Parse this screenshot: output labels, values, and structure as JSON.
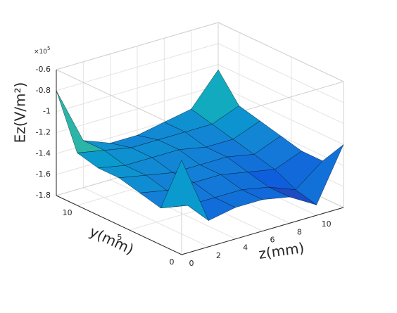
{
  "chart_data": {
    "type": "surface",
    "xlabel": "z(mm)",
    "ylabel": "y(mm)",
    "zlabel": "Ez(V/m²)",
    "zexponent": {
      "base": "×10",
      "power": "5"
    },
    "x": [
      0,
      2,
      4,
      6,
      8,
      10,
      12
    ],
    "y": [
      0,
      2,
      4,
      6,
      8,
      10,
      12
    ],
    "z": [
      [
        -0.9,
        -1.55,
        -1.5,
        -1.5,
        -1.55,
        -1.7,
        -1.2
      ],
      [
        -1.45,
        -1.5,
        -1.5,
        -1.5,
        -1.55,
        -1.65,
        -1.45
      ],
      [
        -1.4,
        -1.45,
        -1.45,
        -1.45,
        -1.5,
        -1.55,
        -1.45
      ],
      [
        -1.35,
        -1.4,
        -1.45,
        -1.45,
        -1.45,
        -1.5,
        -1.4
      ],
      [
        -1.35,
        -1.4,
        -1.4,
        -1.4,
        -1.45,
        -1.45,
        -1.35
      ],
      [
        -1.3,
        -1.35,
        -1.4,
        -1.4,
        -1.4,
        -1.4,
        -1.3
      ],
      [
        -0.8,
        -1.35,
        -1.45,
        -1.45,
        -1.4,
        -1.35,
        -1.05
      ]
    ],
    "xlim": [
      0,
      12
    ],
    "xticks": [
      0,
      2,
      4,
      6,
      8,
      10
    ],
    "ylim": [
      0,
      12
    ],
    "yticks": [
      0,
      5,
      10
    ],
    "zlim": [
      -1.8,
      -0.6
    ],
    "zticks": [
      -1.8,
      -1.6,
      -1.4,
      -1.2,
      -1,
      -0.8,
      -0.6
    ],
    "grid": true,
    "edgecolor": "#000000",
    "colormap": [
      "#352a87",
      "#0f5cdd",
      "#1481d6",
      "#06a4ca",
      "#2eb7a4",
      "#87bf77",
      "#d1bb59",
      "#f9fb0e"
    ]
  }
}
